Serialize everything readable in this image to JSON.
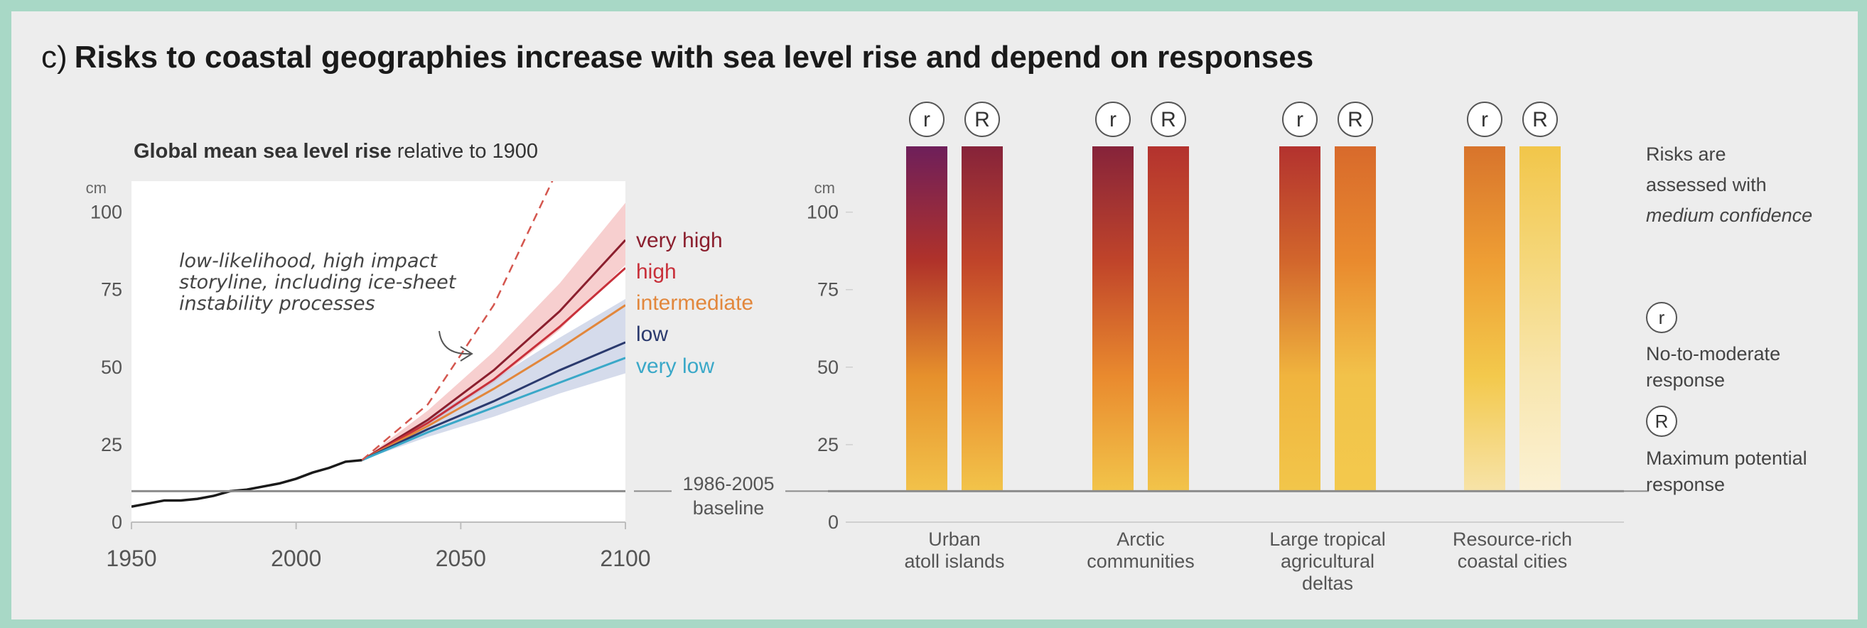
{
  "panel": {
    "label": "c)",
    "title": "Risks to coastal geographies increase with sea level rise and depend on responses"
  },
  "colors": {
    "background": "#a8d8c6",
    "panel": "#ededed",
    "very_high": "#8b1f2e",
    "high": "#c8303a",
    "intermediate": "#e2873c",
    "low": "#2b3a6e",
    "very_low": "#3aa8c8",
    "observed": "#1a1a1a",
    "baseline": "#8c8c8c"
  },
  "chart_data": [
    {
      "type": "line",
      "title": "Global mean sea level rise",
      "title_suffix": "relative to 1900",
      "ylabel": "cm",
      "xlim": [
        1950,
        2100
      ],
      "ylim": [
        0,
        110
      ],
      "x_ticks": [
        1950,
        2000,
        2050,
        2100
      ],
      "y_ticks": [
        0,
        25,
        50,
        75,
        100
      ],
      "baseline": {
        "value": 10,
        "label_line1": "1986-2005",
        "label_line2": "baseline"
      },
      "annotation": [
        "low-likelihood, high impact",
        "storyline, including ice-sheet",
        "instability processes"
      ],
      "observed": {
        "x": [
          1950,
          1955,
          1960,
          1965,
          1970,
          1975,
          1980,
          1985,
          1990,
          1995,
          2000,
          2005,
          2010,
          2015,
          2020
        ],
        "y": [
          5,
          6,
          7,
          7,
          7.5,
          8.5,
          10,
          10.5,
          11.5,
          12.5,
          14,
          16,
          17.5,
          19.5,
          20
        ]
      },
      "series": [
        {
          "name": "very high",
          "color_key": "very_high",
          "x": [
            2020,
            2040,
            2060,
            2080,
            2100
          ],
          "y": [
            20,
            33,
            49,
            68,
            91
          ],
          "band": [
            83,
            103
          ]
        },
        {
          "name": "high",
          "color_key": "high",
          "x": [
            2020,
            2040,
            2060,
            2080,
            2100
          ],
          "y": [
            20,
            32,
            46,
            63,
            82
          ]
        },
        {
          "name": "intermediate",
          "color_key": "intermediate",
          "x": [
            2020,
            2040,
            2060,
            2080,
            2100
          ],
          "y": [
            20,
            31,
            43,
            56,
            70
          ]
        },
        {
          "name": "low",
          "color_key": "low",
          "x": [
            2020,
            2040,
            2060,
            2080,
            2100
          ],
          "y": [
            20,
            30,
            39,
            49,
            58
          ],
          "band": [
            48,
            72
          ]
        },
        {
          "name": "very low",
          "color_key": "very_low",
          "x": [
            2020,
            2040,
            2060,
            2080,
            2100
          ],
          "y": [
            20,
            29,
            37,
            45,
            53
          ]
        }
      ],
      "storyline": {
        "x": [
          2020,
          2040,
          2060,
          2080
        ],
        "y": [
          20,
          38,
          70,
          115
        ]
      }
    },
    {
      "type": "bar",
      "ylabel": "cm",
      "ylim": [
        0,
        110
      ],
      "y_ticks": [
        0,
        25,
        50,
        75,
        100
      ],
      "baseline": 10,
      "response_letters": [
        "r",
        "R"
      ],
      "groups": [
        {
          "label": [
            "Urban",
            "atoll islands"
          ],
          "bars": [
            {
              "response": "r",
              "top": 118,
              "colors": [
                "#6e1f5a",
                "#b0322a",
                "#e6902c",
                "#f2c24a"
              ]
            },
            {
              "response": "R",
              "top": 118,
              "colors": [
                "#86233a",
                "#c0442a",
                "#e98a2e",
                "#f2c44a"
              ]
            }
          ]
        },
        {
          "label": [
            "Arctic",
            "communities"
          ],
          "bars": [
            {
              "response": "r",
              "top": 118,
              "colors": [
                "#86233a",
                "#c0442a",
                "#e98a2e",
                "#f2c44a"
              ]
            },
            {
              "response": "R",
              "top": 118,
              "colors": [
                "#b3322e",
                "#cf5a2b",
                "#e98a2e",
                "#f2c44a"
              ]
            }
          ]
        },
        {
          "label": [
            "Large tropical",
            "agricultural",
            "deltas"
          ],
          "bars": [
            {
              "response": "r",
              "top": 118,
              "colors": [
                "#b3322e",
                "#d2662c",
                "#f0b43e",
                "#f2c64a"
              ]
            },
            {
              "response": "R",
              "top": 118,
              "colors": [
                "#d86a2c",
                "#e98a2e",
                "#f2c24a",
                "#f3c94c"
              ]
            }
          ]
        },
        {
          "label": [
            "Resource-rich",
            "coastal cities"
          ],
          "bars": [
            {
              "response": "r",
              "top": 118,
              "colors": [
                "#d8742c",
                "#ee9e34",
                "#f3c94c",
                "#f7e3a8"
              ]
            },
            {
              "response": "R",
              "top": 118,
              "colors": [
                "#f2c64a",
                "#f5d77a",
                "#f8e6ae",
                "#fbf1d4"
              ]
            }
          ]
        }
      ]
    }
  ],
  "legend": {
    "confidence": [
      "Risks are",
      "assessed with",
      "medium confidence"
    ],
    "r_letter": "r",
    "r_text": [
      "No-to-moderate",
      "response"
    ],
    "R_letter": "R",
    "R_text": [
      "Maximum potential",
      "response"
    ]
  }
}
